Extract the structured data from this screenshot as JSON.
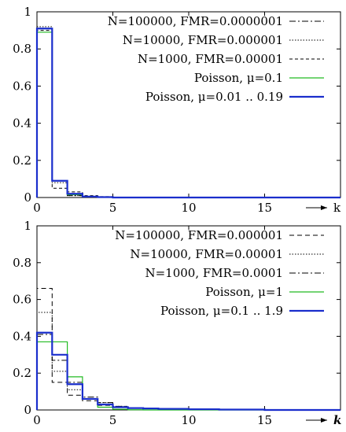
{
  "chart_data": [
    {
      "type": "line",
      "xlim": [
        0,
        20
      ],
      "ylim": [
        0,
        1
      ],
      "x_ticks": [
        "0",
        "5",
        "10",
        "15"
      ],
      "y_ticks": [
        "0",
        "0.2",
        "0.4",
        "0.6",
        "0.8",
        "1"
      ],
      "x_axis_label": "k",
      "grid": false,
      "legend_position": "top-right",
      "series": [
        {
          "name": "N=100000, FMR=0.0000001",
          "color": "#000000",
          "dash": "8,3,2,3",
          "width": 1,
          "x": [
            0,
            1,
            2,
            3,
            4,
            5,
            20
          ],
          "values": [
            0.91,
            0.09,
            0.01,
            0.005,
            0.002,
            0.0,
            0.0
          ]
        },
        {
          "name": "N=10000, FMR=0.000001",
          "color": "#000000",
          "dash": "1.5,2",
          "width": 1,
          "x": [
            0,
            1,
            2,
            3,
            4,
            5,
            20
          ],
          "values": [
            0.92,
            0.08,
            0.01,
            0.005,
            0.002,
            0.0,
            0.0
          ]
        },
        {
          "name": "N=1000, FMR=0.00001",
          "color": "#000000",
          "dash": "4,3",
          "width": 1,
          "x": [
            0,
            1,
            2,
            3,
            4,
            5,
            20
          ],
          "values": [
            0.9,
            0.05,
            0.03,
            0.01,
            0.005,
            0.0,
            0.0
          ]
        },
        {
          "name": "Poisson,  μ=0.1",
          "color": "#22bb22",
          "dash": "",
          "width": 1.2,
          "x": [
            0,
            1,
            2,
            3,
            4,
            5,
            20
          ],
          "values": [
            0.89,
            0.09,
            0.015,
            0.005,
            0.002,
            0.0,
            0.0
          ]
        },
        {
          "name": "Poisson,  μ=0.01 .. 0.19",
          "color": "#1a2ecc",
          "dash": "",
          "width": 2.2,
          "x": [
            0,
            1,
            2,
            3,
            4,
            5,
            20
          ],
          "values": [
            0.91,
            0.09,
            0.02,
            0.005,
            0.002,
            0.0,
            0.0
          ]
        }
      ]
    },
    {
      "type": "line",
      "xlim": [
        0,
        20
      ],
      "ylim": [
        0,
        1
      ],
      "x_ticks": [
        "0",
        "5",
        "10",
        "15"
      ],
      "y_ticks": [
        "0",
        "0.2",
        "0.4",
        "0.6",
        "0.8",
        "1"
      ],
      "x_axis_label": "k",
      "grid": false,
      "legend_position": "top-right",
      "series": [
        {
          "name": "N=100000, FMR=0.000001",
          "color": "#000000",
          "dash": "6,4",
          "width": 1,
          "x": [
            0,
            1,
            2,
            3,
            4,
            5,
            6,
            7,
            8,
            10,
            12,
            15,
            20
          ],
          "values": [
            0.66,
            0.15,
            0.08,
            0.05,
            0.025,
            0.015,
            0.01,
            0.007,
            0.005,
            0.003,
            0.002,
            0.0,
            0.0
          ]
        },
        {
          "name": "N=10000, FMR=0.00001",
          "color": "#000000",
          "dash": "1.5,2",
          "width": 1,
          "x": [
            0,
            1,
            2,
            3,
            4,
            5,
            6,
            7,
            8,
            10,
            12,
            15,
            20
          ],
          "values": [
            0.53,
            0.21,
            0.11,
            0.06,
            0.04,
            0.02,
            0.012,
            0.008,
            0.006,
            0.004,
            0.002,
            0.0,
            0.0
          ]
        },
        {
          "name": "N=1000, FMR=0.0001",
          "color": "#000000",
          "dash": "8,3,2,3",
          "width": 1,
          "x": [
            0,
            1,
            2,
            3,
            4,
            5,
            6,
            7,
            8,
            10,
            12,
            15,
            20
          ],
          "values": [
            0.41,
            0.27,
            0.15,
            0.07,
            0.04,
            0.02,
            0.012,
            0.008,
            0.006,
            0.004,
            0.002,
            0.0,
            0.0
          ]
        },
        {
          "name": "Poisson,  μ=1",
          "color": "#22bb22",
          "dash": "",
          "width": 1.2,
          "x": [
            0,
            1,
            2,
            3,
            4,
            5,
            6,
            7,
            8,
            10,
            12,
            15,
            20
          ],
          "values": [
            0.37,
            0.37,
            0.18,
            0.06,
            0.015,
            0.004,
            0.001,
            0.0,
            0.0,
            0.0,
            0.0,
            0.0,
            0.0
          ]
        },
        {
          "name": "Poisson,  μ=0.1 .. 1.9",
          "color": "#1a2ecc",
          "dash": "",
          "width": 2.2,
          "x": [
            0,
            1,
            2,
            3,
            4,
            5,
            6,
            7,
            8,
            10,
            12,
            15,
            20
          ],
          "values": [
            0.42,
            0.3,
            0.14,
            0.06,
            0.03,
            0.015,
            0.01,
            0.008,
            0.006,
            0.004,
            0.002,
            0.0,
            0.0
          ]
        }
      ]
    }
  ]
}
